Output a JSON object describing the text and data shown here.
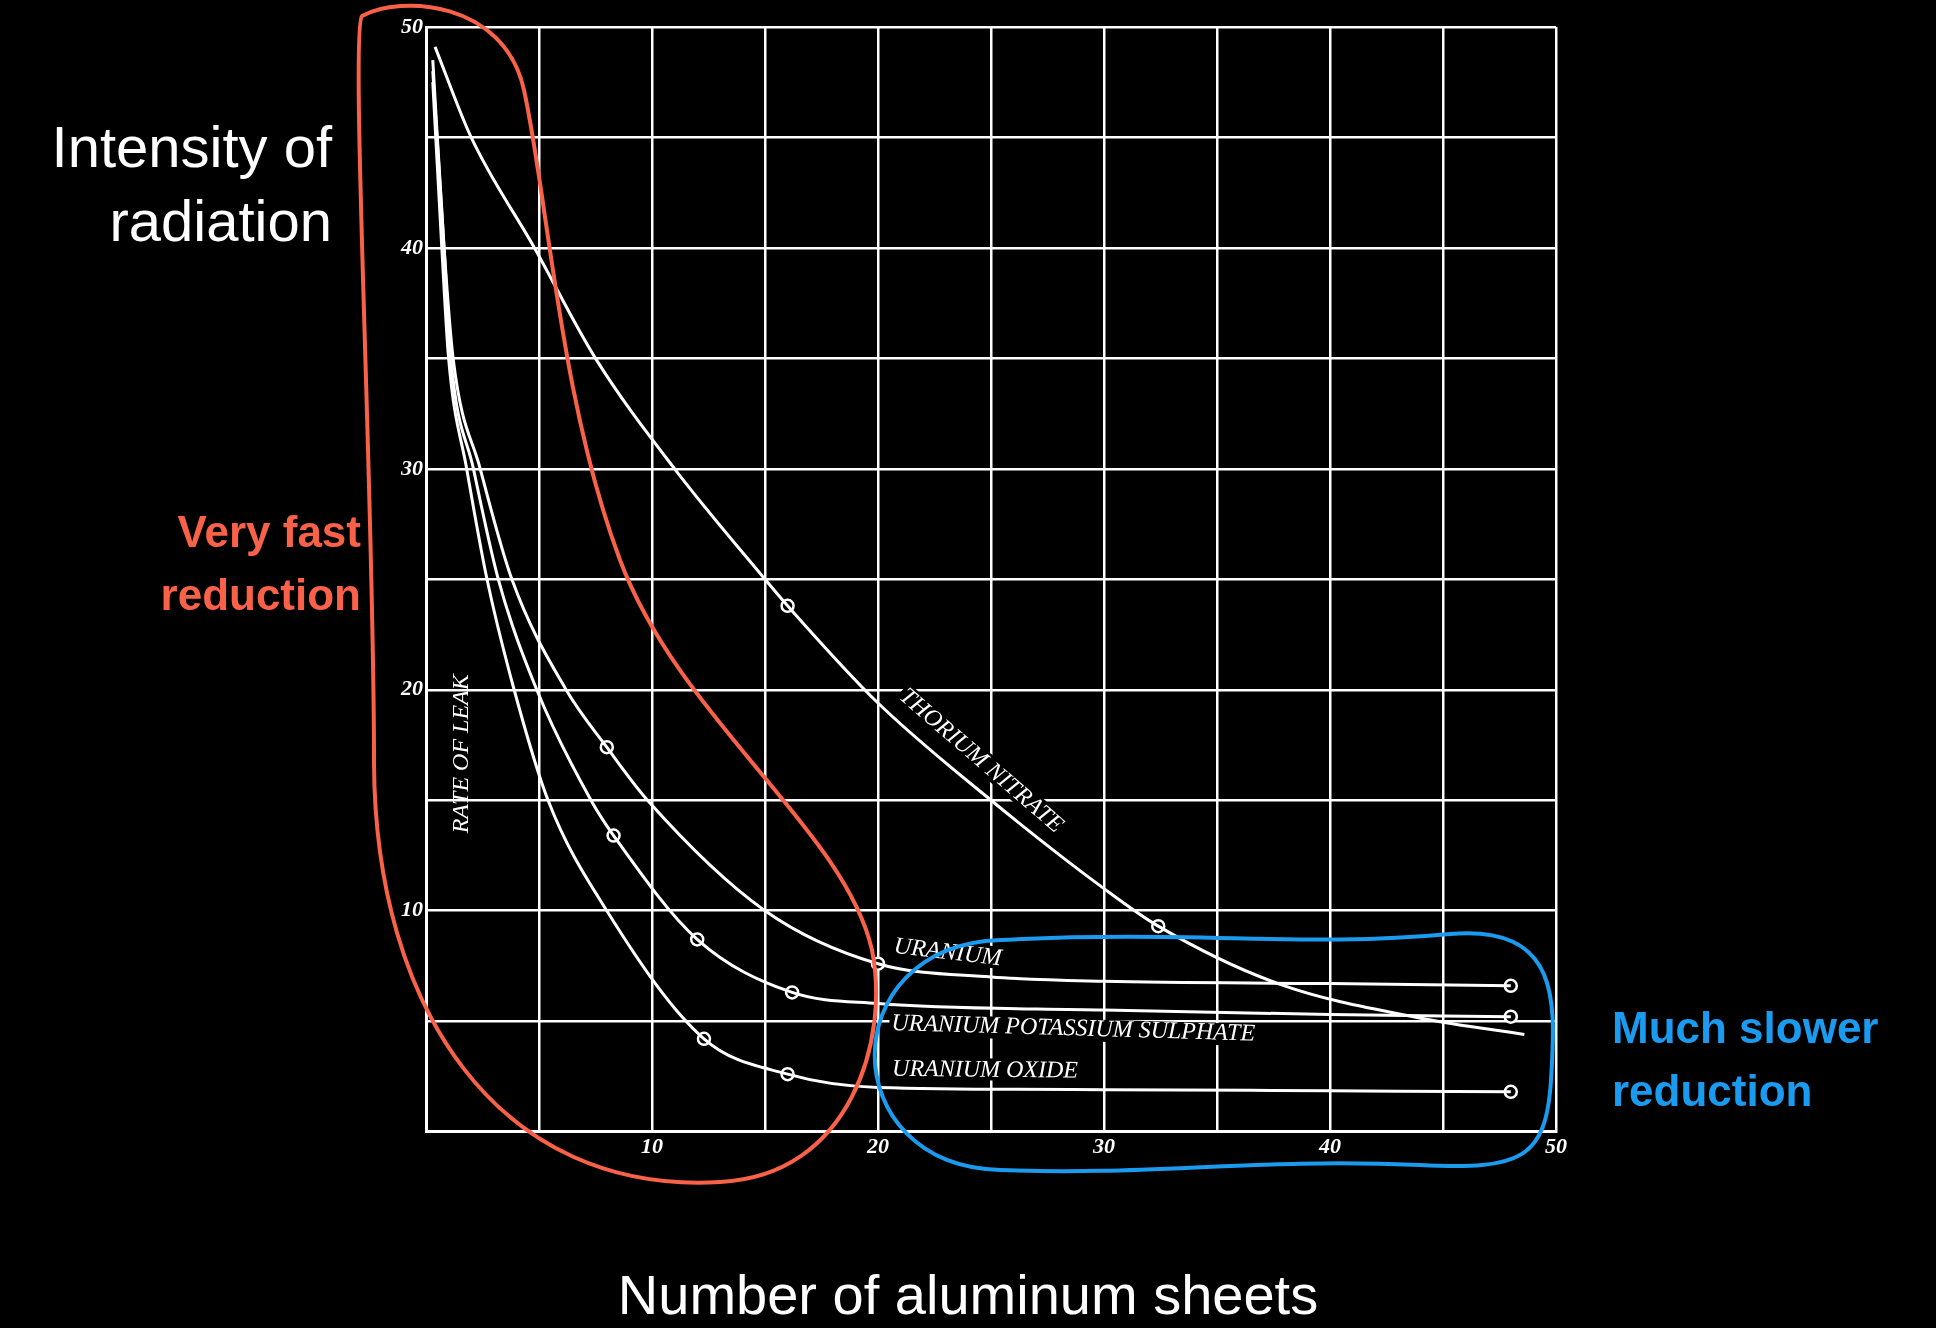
{
  "chart_data": {
    "type": "line",
    "xlabel": "Number of aluminum sheets",
    "ylabel": "Intensity of radiation",
    "annotations": [
      "RATE OF LEAK",
      "Very fast reduction",
      "Much slower reduction"
    ],
    "xlim": [
      0,
      50
    ],
    "ylim": [
      0,
      50
    ],
    "xticks": [
      {
        "value": 0,
        "label": null
      },
      {
        "value": 5,
        "label": null
      },
      10,
      {
        "value": 15,
        "label": null
      },
      20,
      {
        "value": 25,
        "label": null
      },
      30,
      {
        "value": 35,
        "label": null
      },
      40,
      {
        "value": 45,
        "label": null
      },
      50
    ],
    "yticks": [
      {
        "value": 0,
        "label": null
      },
      {
        "value": 5,
        "label": null
      },
      10,
      {
        "value": 15,
        "label": null
      },
      20,
      {
        "value": 25,
        "label": null
      },
      30,
      {
        "value": 35,
        "label": null
      },
      40,
      {
        "value": 45,
        "label": null
      },
      50
    ],
    "grid": true,
    "legend": false,
    "series": [
      {
        "name": "THORIUM NITRATE",
        "color": "#ffffff",
        "x": [
          0.4,
          2,
          4.8,
          7.5,
          11,
          15,
          16,
          20,
          25,
          30,
          32.4,
          37.7,
          44.2,
          48.6
        ],
        "values": [
          49.1,
          45,
          40,
          35,
          30,
          25,
          23.8,
          19.4,
          15,
          11,
          9.3,
          6.7,
          5.1,
          4.4
        ]
      },
      {
        "name": "URANIUM",
        "color": "#ffffff",
        "x": [
          0.3,
          0.8,
          1.2,
          2.4,
          3.8,
          6.2,
          8,
          9.8,
          15,
          20,
          25,
          30,
          40,
          48
        ],
        "values": [
          48.5,
          40,
          35,
          30,
          25,
          20,
          17.4,
          15,
          10,
          7.6,
          7,
          6.8,
          6.7,
          6.6
        ]
      },
      {
        "name": "URANIUM POTASSIUM SULPHATE",
        "color": "#ffffff",
        "x": [
          0.3,
          0.8,
          1.1,
          2.1,
          3.2,
          4.9,
          7.3,
          8.3,
          12,
          16.2,
          20,
          30,
          40,
          48
        ],
        "values": [
          48,
          40,
          35,
          30,
          25,
          20,
          15,
          13.4,
          8.7,
          6.3,
          5.8,
          5.5,
          5.3,
          5.2
        ]
      },
      {
        "name": "URANIUM OXIDE",
        "color": "#ffffff",
        "x": [
          0.3,
          0.7,
          1,
          1.8,
          2.7,
          3.9,
          5.4,
          8,
          12.3,
          16,
          20,
          30,
          40,
          48
        ],
        "values": [
          47.5,
          40,
          35,
          30,
          25,
          20,
          15,
          10,
          4.2,
          2.6,
          2,
          1.9,
          1.85,
          1.8
        ]
      },
      {
        "type": "scatter",
        "marker": "circle",
        "color": "#ffffff",
        "x": [
          16,
          32.4
        ],
        "values": [
          23.8,
          9.3
        ]
      },
      {
        "type": "scatter",
        "marker": "circle",
        "color": "#ffffff",
        "x": [
          8,
          20,
          48
        ],
        "values": [
          17.4,
          7.6,
          6.6
        ]
      },
      {
        "type": "scatter",
        "marker": "circle",
        "color": "#ffffff",
        "x": [
          8.3,
          12,
          16.2,
          48
        ],
        "values": [
          13.4,
          8.7,
          6.3,
          5.2
        ]
      },
      {
        "type": "scatter",
        "marker": "circle",
        "color": "#ffffff",
        "x": [
          12.3,
          16,
          48
        ],
        "values": [
          4.2,
          2.6,
          1.8
        ]
      }
    ]
  }
}
